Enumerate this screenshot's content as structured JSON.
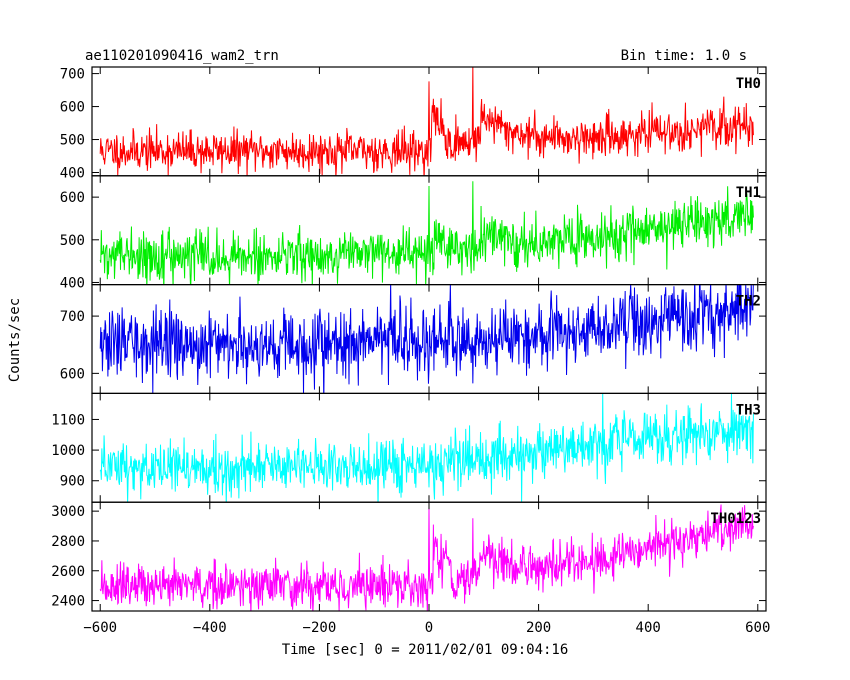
{
  "header": {
    "title": "ae110201090416_wam2_trn",
    "bin_time": "Bin time: 1.0 s"
  },
  "axes": {
    "ylabel": "Counts/sec",
    "xlabel": "Time [sec] 0 = 2011/02/01 09:04:16"
  },
  "chart_data": {
    "type": "line",
    "x_range": [
      -600,
      592
    ],
    "xlim": [
      -615,
      615
    ],
    "x_ticks": [
      -600,
      -400,
      -200,
      0,
      200,
      400,
      600
    ],
    "x_tick_labels": [
      "−600",
      "−400",
      "−200",
      "0",
      "200",
      "400",
      "600"
    ],
    "grid": false,
    "panels": [
      {
        "name": "TH0",
        "color": "#ff0000",
        "ylim": [
          390,
          720
        ],
        "yticks": [
          400,
          500,
          600,
          700
        ],
        "baseline": [
          [
            -600,
            465
          ],
          [
            0,
            465
          ],
          [
            100,
            505
          ],
          [
            300,
            505
          ],
          [
            592,
            545
          ]
        ],
        "noise": 30,
        "seed": 11,
        "events": [
          {
            "x": 0,
            "type": "spike",
            "amp": 200
          },
          {
            "x": 5,
            "type": "bump",
            "amp": 120,
            "width": 30
          },
          {
            "x": 30,
            "type": "bump",
            "amp": -40,
            "width": 35
          },
          {
            "x": 80,
            "type": "spike",
            "amp": 250
          },
          {
            "x": 95,
            "type": "bump",
            "amp": 80,
            "width": 40
          }
        ]
      },
      {
        "name": "TH1",
        "color": "#00ee00",
        "ylim": [
          395,
          650
        ],
        "yticks": [
          400,
          500,
          600
        ],
        "baseline": [
          [
            -600,
            460
          ],
          [
            0,
            465
          ],
          [
            100,
            485
          ],
          [
            300,
            505
          ],
          [
            592,
            560
          ]
        ],
        "noise": 28,
        "seed": 22,
        "events": [
          {
            "x": 0,
            "type": "spike",
            "amp": 180
          },
          {
            "x": 10,
            "type": "bump",
            "amp": 40,
            "width": 25
          },
          {
            "x": 80,
            "type": "spike",
            "amp": 190
          },
          {
            "x": 95,
            "type": "bump",
            "amp": 40,
            "width": 30
          }
        ]
      },
      {
        "name": "TH2",
        "color": "#0000ee",
        "ylim": [
          565,
          755
        ],
        "yticks": [
          600,
          700
        ],
        "baseline": [
          [
            -600,
            650
          ],
          [
            0,
            655
          ],
          [
            200,
            665
          ],
          [
            400,
            690
          ],
          [
            592,
            720
          ]
        ],
        "noise": 30,
        "seed": 33,
        "events": [
          {
            "x": 10,
            "type": "spike",
            "amp": 80
          }
        ]
      },
      {
        "name": "TH3",
        "color": "#00ffff",
        "ylim": [
          830,
          1185
        ],
        "yticks": [
          900,
          1000,
          1100
        ],
        "baseline": [
          [
            -600,
            940
          ],
          [
            0,
            950
          ],
          [
            200,
            990
          ],
          [
            400,
            1040
          ],
          [
            592,
            1070
          ]
        ],
        "noise": 45,
        "seed": 44,
        "events": [
          {
            "x": 415,
            "type": "spike",
            "amp": 150
          }
        ]
      },
      {
        "name": "TH0123",
        "color": "#ff00ff",
        "ylim": [
          2330,
          3060
        ],
        "yticks": [
          2400,
          2600,
          2800,
          3000
        ],
        "baseline": [
          [
            -600,
            2490
          ],
          [
            0,
            2510
          ],
          [
            100,
            2600
          ],
          [
            300,
            2650
          ],
          [
            592,
            2920
          ]
        ],
        "noise": 75,
        "seed": 55,
        "events": [
          {
            "x": 0,
            "type": "spike",
            "amp": 550
          },
          {
            "x": 8,
            "type": "bump",
            "amp": 280,
            "width": 25
          },
          {
            "x": 40,
            "type": "bump",
            "amp": -110,
            "width": 35
          },
          {
            "x": 80,
            "type": "spike",
            "amp": 500
          },
          {
            "x": 95,
            "type": "bump",
            "amp": 150,
            "width": 35
          }
        ]
      }
    ]
  }
}
